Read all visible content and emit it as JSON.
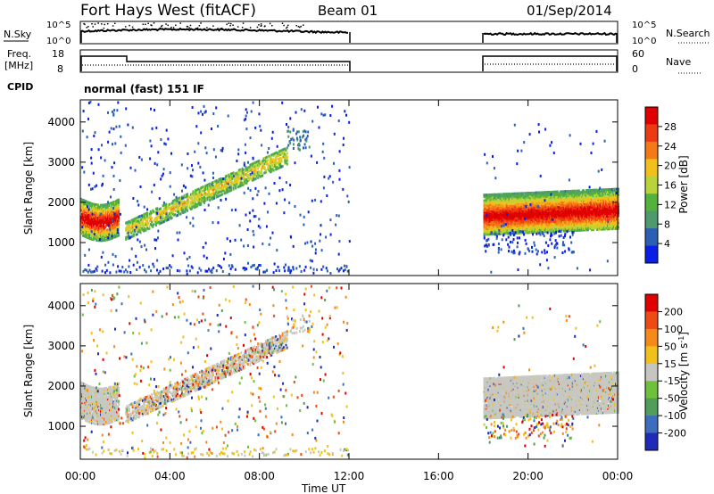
{
  "header": {
    "title": "Fort Hays West (fitACF)",
    "beam": "Beam 01",
    "date": "01/Sep/2014"
  },
  "panels": {
    "nsky_label": "N.Sky",
    "nsky_ticks": [
      "10^5",
      "10^0"
    ],
    "nsearch_label": "N.Search",
    "nsearch_ticks": [
      "10^5",
      "10^0"
    ],
    "freq_label_1": "Freq.",
    "freq_label_2": "[MHz]",
    "freq_ticks": [
      "18",
      "8"
    ],
    "nave_label": "Nave",
    "nave_ticks": [
      "60",
      "0"
    ],
    "cpid_label": "CPID",
    "cpid_value": "normal (fast) 151 IF"
  },
  "colors": {
    "power_scale": [
      "#0a1ee6",
      "#2b5fb5",
      "#4d9a6e",
      "#52b23c",
      "#b8d43a",
      "#f2c01a",
      "#f57a17",
      "#ee3a12",
      "#e00000"
    ],
    "velocity_scale": [
      "#1f2ab8",
      "#3d6dbf",
      "#4f9e5a",
      "#6fc03a",
      "#c6c6c0",
      "#f2c01a",
      "#f58a1a",
      "#ee4a14",
      "#e00000"
    ],
    "ground_scatter": "#c8c8c2"
  },
  "chart_data": [
    {
      "type": "heatmap",
      "panel": "power",
      "ylabel": "Slant Range [km]",
      "xlabel": "Time UT",
      "x_ticks": [
        "00:00",
        "04:00",
        "08:00",
        "12:00",
        "16:00",
        "20:00",
        "00:00"
      ],
      "xlim_hours": [
        0,
        24
      ],
      "y_ticks": [
        "4000",
        "3000",
        "2000",
        "1000"
      ],
      "ylim_km": [
        180,
        4550
      ],
      "colorbar_label": "Power [dB]",
      "colorbar_ticks": [
        "28",
        "24",
        "20",
        "16",
        "12",
        "8",
        "4"
      ],
      "colorbar_range": [
        0,
        32
      ],
      "data_gaps_hours": [
        [
          12,
          18
        ]
      ]
    },
    {
      "type": "heatmap",
      "panel": "velocity",
      "ylabel": "Slant Range [km]",
      "xlabel": "Time UT",
      "x_ticks": [
        "00:00",
        "04:00",
        "08:00",
        "12:00",
        "16:00",
        "20:00",
        "00:00"
      ],
      "xlim_hours": [
        0,
        24
      ],
      "y_ticks": [
        "4000",
        "3000",
        "2000",
        "1000"
      ],
      "ylim_km": [
        180,
        4550
      ],
      "colorbar_label": "Velocity [m s^-1]",
      "colorbar_ticks": [
        "200",
        "100",
        "50",
        "15",
        "-15",
        "-50",
        "-100",
        "-200"
      ],
      "data_gaps_hours": [
        [
          12,
          18
        ]
      ]
    }
  ]
}
